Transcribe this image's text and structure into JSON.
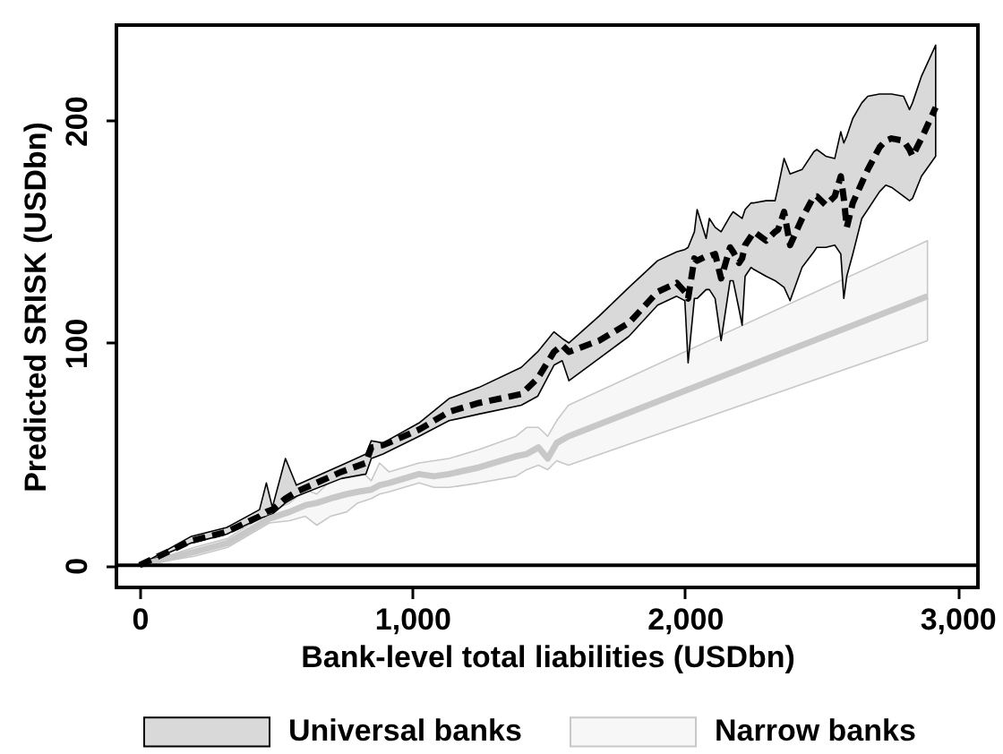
{
  "chart_data": {
    "type": "line",
    "xlabel": "Bank-level total liabilities (USDbn)",
    "ylabel": "Predicted SRISK (USDbn)",
    "xlim": [
      -85,
      3075
    ],
    "ylim": [
      -10,
      243
    ],
    "xticks": [
      0,
      {
        "value": 1000,
        "label": "1,000"
      },
      {
        "value": 2000,
        "label": "2,000"
      },
      {
        "value": 3000,
        "label": "3,000"
      }
    ],
    "yticks": [
      0,
      100,
      200
    ],
    "legend": "bottom",
    "ref_lines": [
      {
        "axis": "y",
        "value": 0,
        "color": "#000000"
      }
    ],
    "series": [
      {
        "name": "Universal banks",
        "color": "#000000",
        "line_style": "dashed",
        "x": [
          0,
          190,
          320,
          440,
          465,
          487,
          535,
          575,
          740,
          830,
          850,
          893,
          1025,
          1135,
          1245,
          1400,
          1460,
          1520,
          1550,
          1575,
          1685,
          1795,
          1900,
          1970,
          2000,
          2012,
          2035,
          2045,
          2078,
          2090,
          2111,
          2133,
          2166,
          2177,
          2199,
          2210,
          2221,
          2243,
          2254,
          2298,
          2331,
          2342,
          2364,
          2386,
          2430,
          2473,
          2484,
          2517,
          2550,
          2572,
          2583,
          2594,
          2616,
          2649,
          2671,
          2714,
          2737,
          2758,
          2802,
          2824,
          2835,
          2868,
          2920
        ],
        "values": [
          0,
          11,
          15,
          22,
          24,
          25,
          30,
          33,
          42,
          46,
          53,
          54,
          61,
          69,
          73,
          77,
          84,
          96,
          99,
          96,
          101,
          109,
          123,
          127,
          123,
          120,
          138,
          137,
          139,
          139,
          140,
          129,
          143,
          141,
          136,
          138,
          144,
          148,
          150,
          146,
          150,
          151,
          159,
          144,
          156,
          166,
          166,
          162,
          166,
          175,
          165,
          152,
          163,
          172,
          178,
          188,
          191,
          192,
          191,
          187,
          184,
          192,
          206
        ],
        "lower": [
          0,
          10,
          14,
          21,
          22,
          23,
          28,
          31,
          39,
          41,
          48,
          50,
          58,
          65,
          68,
          72,
          76,
          90,
          92,
          83,
          93,
          103,
          117,
          121,
          119,
          91,
          120,
          120,
          124,
          124,
          120,
          101,
          128,
          128,
          115,
          108,
          130,
          134,
          133,
          130,
          128,
          127,
          125,
          119,
          134,
          141,
          143,
          143,
          144,
          140,
          120,
          130,
          140,
          156,
          160,
          168,
          171,
          170,
          166,
          164,
          165,
          175,
          184
        ],
        "upper": [
          0,
          13,
          17,
          25,
          37,
          26,
          48,
          36,
          45,
          50,
          56,
          55,
          64,
          75,
          80,
          89,
          96,
          105,
          102,
          100,
          112,
          125,
          137,
          141,
          142,
          143,
          150,
          160,
          147,
          156,
          152,
          150,
          157,
          159,
          157,
          156,
          160,
          163,
          163,
          164,
          164,
          170,
          183,
          176,
          178,
          186,
          187,
          184,
          183,
          195,
          190,
          193,
          201,
          208,
          211,
          212,
          212,
          212,
          211,
          205,
          208,
          220,
          234
        ]
      },
      {
        "name": "Narrow banks",
        "color": "#c8c8c8",
        "line_style": "solid",
        "x": [
          0,
          200,
          323,
          476,
          550,
          608,
          650,
          700,
          760,
          800,
          850,
          880,
          915,
          1025,
          1080,
          1135,
          1245,
          1380,
          1420,
          1463,
          1497,
          1530,
          1573,
          2890
        ],
        "values": [
          0,
          6,
          10,
          21,
          24,
          27,
          28,
          30,
          32,
          33,
          34,
          36,
          37,
          41,
          40,
          41,
          44,
          49,
          50,
          53,
          48,
          55,
          58,
          121
        ],
        "lower": [
          0,
          4,
          8,
          19,
          20,
          22,
          18,
          22,
          24,
          28,
          30,
          32,
          33,
          37,
          35,
          35,
          37,
          40,
          43,
          45,
          43,
          47,
          45,
          101
        ],
        "upper": [
          0,
          8,
          12,
          24,
          28,
          34,
          32,
          38,
          40,
          44,
          38,
          46,
          42,
          46,
          47,
          48,
          52,
          58,
          62,
          62,
          58,
          65,
          72,
          146
        ]
      }
    ]
  }
}
